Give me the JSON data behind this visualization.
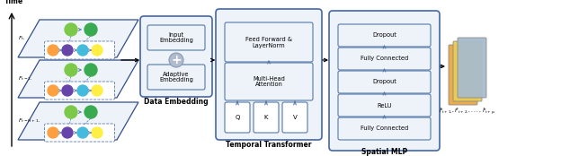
{
  "bg_color": "#ffffff",
  "gc": {
    "orange": "#FFA040",
    "green": "#7CC84A",
    "dark_green": "#3AAA50",
    "purple": "#6644AA",
    "cyan": "#44BBDD",
    "yellow": "#FFEE44",
    "box_fill": "#EEF3FA",
    "box_edge": "#5577AA",
    "outer_edge": "#4466AA",
    "blue_arrow": "#5577AA",
    "para_fill": "#EEF3FA",
    "para_edge": "#334E8A",
    "plus_fill": "#9AACCC",
    "output_orange": "#E8A844",
    "output_blue": "#A8BCCC",
    "output_yellow": "#E8CC55"
  },
  "labels": {
    "time": "Time",
    "F_t": "$F_{t,}$",
    "F_t1": "$F_{t-1,}$",
    "F_tH1": "$F_{t-H+1,}$",
    "data_embedding": "Data Embedding",
    "temporal_transformer": "Temporal Transformer",
    "spatial_mlp": "Spatial MLP",
    "input_embedding": "Input\nEmbedding",
    "adaptive_embedding": "Adaptive\nEmbedding",
    "feed_forward": "Feed Forward &\nLayerNorm",
    "multi_head": "Multi-Head\nAttention",
    "Q": "Q",
    "K": "K",
    "V": "V",
    "dropout1": "Dropout",
    "fully_connected1": "Fully Connected",
    "dropout2": "Dropout",
    "relu": "ReLU",
    "fully_connected2": "Fully Connected",
    "output_label": "$\\hat{F}_{t+1,}, \\hat{F}_{t+2,}, ..., \\hat{F}_{t+p,}$"
  },
  "figsize": [
    6.24,
    1.74
  ],
  "dpi": 100
}
